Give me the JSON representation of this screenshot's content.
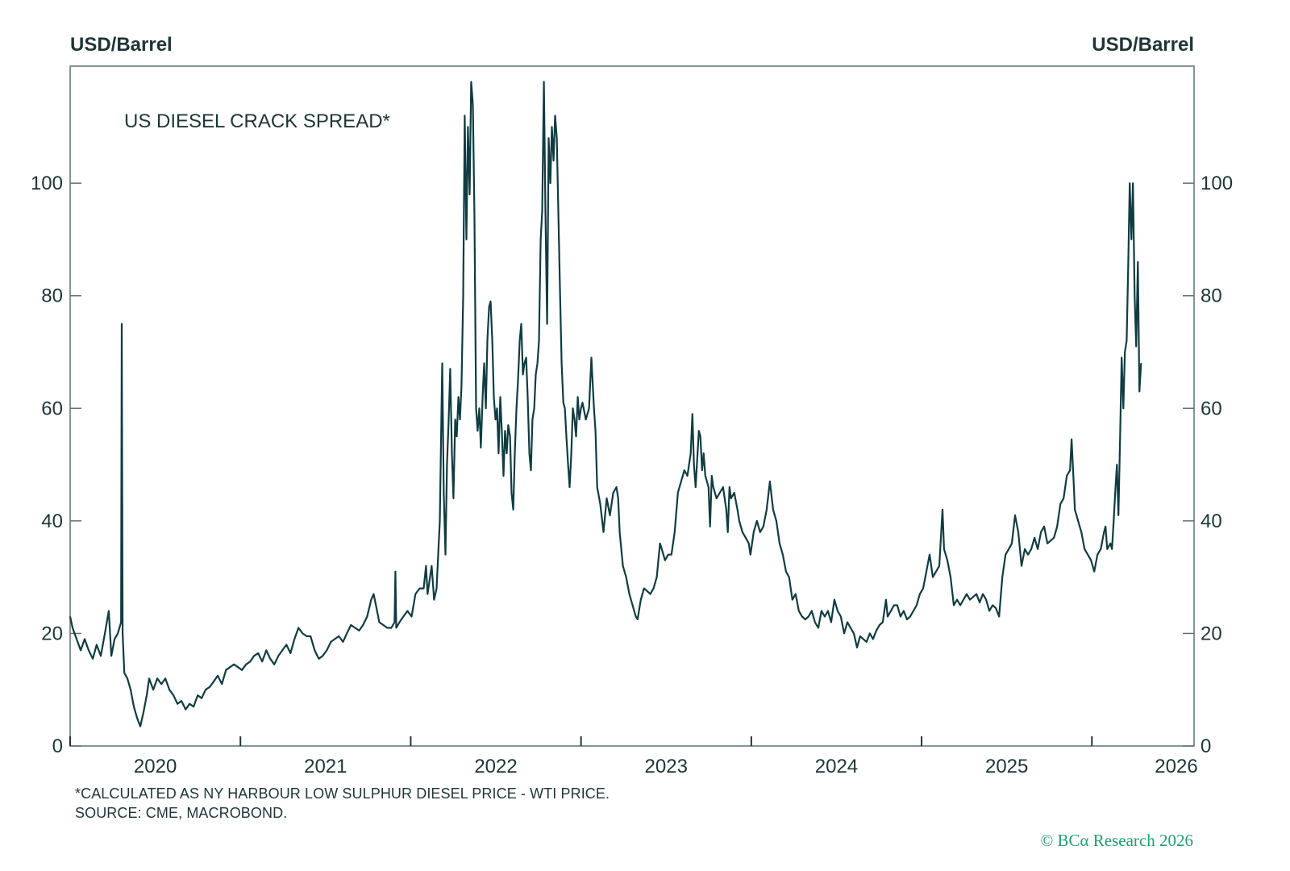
{
  "chart_data": {
    "type": "line",
    "title": "US DIESEL CRACK SPREAD*",
    "ylabel_left": "USD/Barrel",
    "ylabel_right": "USD/Barrel",
    "xlabel": "",
    "xlim": [
      2020,
      2026.6
    ],
    "ylim": [
      0,
      120.8
    ],
    "yticks": [
      "0",
      "20",
      "40",
      "60",
      "80",
      "100"
    ],
    "ytick_values": [
      0,
      20,
      40,
      60,
      80,
      100
    ],
    "xtick_labels": [
      "2020",
      "2021",
      "2022",
      "2023",
      "2024",
      "2025",
      "2026"
    ],
    "xtick_boundaries": [
      2020,
      2021,
      2022,
      2023,
      2024,
      2025,
      2026
    ],
    "grid": false,
    "line_color": "#103c41",
    "series": [
      {
        "x": [
          2020.0,
          2020.014,
          2020.038,
          2020.062,
          2020.085,
          2020.109,
          2020.133,
          2020.156,
          2020.18,
          2020.204,
          2020.227,
          2020.242,
          2020.261,
          2020.28,
          2020.299,
          2020.303,
          2020.308,
          2020.318,
          2020.336,
          2020.355,
          2020.374,
          2020.393,
          2020.412,
          2020.431,
          2020.45,
          2020.464,
          2020.488,
          2020.512,
          2020.536,
          2020.559,
          2020.583,
          2020.607,
          2020.63,
          2020.654,
          2020.678,
          2020.701,
          2020.725,
          2020.749,
          2020.772,
          2020.796,
          2020.82,
          2020.844,
          2020.867,
          2020.891,
          2020.915,
          2020.938,
          2020.962,
          2020.986,
          2021.009,
          2021.033,
          2021.057,
          2021.08,
          2021.104,
          2021.128,
          2021.152,
          2021.175,
          2021.199,
          2021.223,
          2021.246,
          2021.27,
          2021.294,
          2021.317,
          2021.341,
          2021.365,
          2021.389,
          2021.412,
          2021.436,
          2021.46,
          2021.483,
          2021.507,
          2021.531,
          2021.554,
          2021.578,
          2021.602,
          2021.625,
          2021.649,
          2021.673,
          2021.697,
          2021.72,
          2021.744,
          2021.768,
          2021.782,
          2021.796,
          2021.815,
          2021.839,
          2021.862,
          2021.886,
          2021.905,
          2021.91,
          2021.915,
          2021.934,
          2021.957,
          2021.981,
          2022.005,
          2022.028,
          2022.052,
          2022.076,
          2022.09,
          2022.099,
          2022.123,
          2022.137,
          2022.152,
          2022.171,
          2022.185,
          2022.194,
          2022.204,
          2022.213,
          2022.223,
          2022.232,
          2022.242,
          2022.251,
          2022.261,
          2022.27,
          2022.28,
          2022.289,
          2022.298,
          2022.308,
          2022.317,
          2022.327,
          2022.336,
          2022.346,
          2022.355,
          2022.365,
          2022.374,
          2022.384,
          2022.393,
          2022.403,
          2022.412,
          2022.422,
          2022.431,
          2022.441,
          2022.45,
          2022.46,
          2022.469,
          2022.479,
          2022.488,
          2022.498,
          2022.507,
          2022.516,
          2022.526,
          2022.535,
          2022.545,
          2022.554,
          2022.564,
          2022.573,
          2022.583,
          2022.592,
          2022.602,
          2022.611,
          2022.621,
          2022.63,
          2022.64,
          2022.649,
          2022.659,
          2022.668,
          2022.678,
          2022.687,
          2022.697,
          2022.706,
          2022.715,
          2022.725,
          2022.734,
          2022.744,
          2022.753,
          2022.763,
          2022.772,
          2022.782,
          2022.791,
          2022.801,
          2022.81,
          2022.82,
          2022.829,
          2022.839,
          2022.848,
          2022.858,
          2022.867,
          2022.877,
          2022.886,
          2022.896,
          2022.905,
          2022.914,
          2022.924,
          2022.933,
          2022.943,
          2022.952,
          2022.962,
          2022.971,
          2022.981,
          2022.99,
          2023.0,
          2023.009,
          2023.028,
          2023.047,
          2023.061,
          2023.076,
          2023.085,
          2023.095,
          2023.113,
          2023.132,
          2023.151,
          2023.17,
          2023.189,
          2023.208,
          2023.218,
          2023.227,
          2023.246,
          2023.265,
          2023.284,
          2023.303,
          2023.322,
          2023.332,
          2023.351,
          2023.37,
          2023.389,
          2023.407,
          2023.426,
          2023.445,
          2023.464,
          2023.474,
          2023.493,
          2023.512,
          2023.531,
          2023.55,
          2023.569,
          2023.588,
          2023.607,
          2023.625,
          2023.644,
          2023.654,
          2023.663,
          2023.673,
          2023.692,
          2023.701,
          2023.711,
          2023.72,
          2023.73,
          2023.749,
          2023.758,
          2023.768,
          2023.777,
          2023.796,
          2023.815,
          2023.834,
          2023.853,
          2023.862,
          2023.872,
          2023.881,
          2023.9,
          2023.919,
          2023.929,
          2023.948,
          2023.967,
          2023.985,
          2023.995,
          2024.014,
          2024.033,
          2024.052,
          2024.071,
          2024.09,
          2024.109,
          2024.128,
          2024.147,
          2024.166,
          2024.185,
          2024.204,
          2024.222,
          2024.241,
          2024.26,
          2024.279,
          2024.298,
          2024.317,
          2024.336,
          2024.355,
          2024.374,
          2024.393,
          2024.412,
          2024.431,
          2024.45,
          2024.469,
          2024.488,
          2024.507,
          2024.526,
          2024.545,
          2024.564,
          2024.583,
          2024.602,
          2024.621,
          2024.639,
          2024.658,
          2024.677,
          2024.696,
          2024.715,
          2024.734,
          2024.753,
          2024.772,
          2024.791,
          2024.801,
          2024.82,
          2024.838,
          2024.857,
          2024.876,
          2024.895,
          2024.914,
          2024.933,
          2024.952,
          2024.971,
          2024.99,
          2025.009,
          2025.028,
          2025.047,
          2025.066,
          2025.085,
          2025.104,
          2025.123,
          2025.132,
          2025.151,
          2025.17,
          2025.189,
          2025.208,
          2025.227,
          2025.246,
          2025.265,
          2025.284,
          2025.303,
          2025.322,
          2025.341,
          2025.36,
          2025.379,
          2025.398,
          2025.417,
          2025.436,
          2025.455,
          2025.474,
          2025.493,
          2025.512,
          2025.53,
          2025.549,
          2025.568,
          2025.587,
          2025.606,
          2025.625,
          2025.644,
          2025.663,
          2025.682,
          2025.701,
          2025.72,
          2025.739,
          2025.758,
          2025.777,
          2025.796,
          2025.815,
          2025.834,
          2025.853,
          2025.872,
          2025.881,
          2025.891,
          2025.9,
          2025.919,
          2025.938,
          2025.957,
          2025.976,
          2025.995,
          2026.014,
          2026.033,
          2026.052,
          2026.071,
          2026.08,
          2026.09,
          2026.109,
          2026.118,
          2026.128,
          2026.137,
          2026.147,
          2026.156,
          2026.166,
          2026.175,
          2026.185,
          2026.194,
          2026.204,
          2026.213,
          2026.222,
          2026.232,
          2026.241,
          2026.251,
          2026.26,
          2026.27,
          2026.279,
          2026.289
        ],
        "y": [
          23,
          21,
          19,
          17,
          19,
          17,
          15.5,
          18,
          16,
          20,
          24,
          16,
          19,
          20,
          22,
          75,
          20,
          13,
          12,
          10,
          7,
          5,
          3.5,
          6,
          9,
          12,
          10,
          12,
          11,
          12,
          10,
          9,
          7.5,
          8,
          6.5,
          7.5,
          7,
          9,
          8.5,
          10,
          10.5,
          11.5,
          12.5,
          11,
          13.5,
          14,
          14.5,
          14,
          13.5,
          14.5,
          15,
          16,
          16.5,
          15,
          17,
          15.5,
          14.5,
          16,
          17,
          18,
          16.5,
          19,
          21,
          20,
          19.5,
          19.5,
          17,
          15.5,
          16,
          17,
          18.5,
          19,
          19.5,
          18.5,
          20,
          21.5,
          21,
          20.5,
          21.5,
          23,
          26,
          27,
          25,
          22,
          21.5,
          21,
          21,
          22,
          31,
          21,
          22,
          23,
          24,
          23,
          27,
          28,
          28,
          32,
          27,
          32,
          26,
          28,
          40,
          68,
          45,
          34,
          50,
          58,
          67,
          52,
          44,
          58,
          55,
          62,
          58,
          64,
          80,
          112,
          90,
          110,
          98,
          118,
          114,
          95,
          60,
          56,
          60,
          53,
          62,
          68,
          60,
          72,
          78,
          79,
          72,
          62,
          58,
          60,
          52,
          62,
          56,
          48,
          56,
          52,
          57,
          55,
          45,
          42,
          52,
          60,
          65,
          72,
          75,
          66,
          68,
          69,
          62,
          52,
          49,
          58,
          60,
          66,
          68,
          72,
          90,
          95,
          118,
          95,
          75,
          108,
          100,
          110,
          104,
          112,
          108,
          95,
          80,
          68,
          61,
          60,
          55,
          50,
          46,
          52,
          60,
          58,
          55,
          62,
          58,
          60,
          61,
          58,
          60,
          69,
          60,
          56,
          46,
          43,
          38,
          44,
          41,
          45,
          46,
          44,
          38,
          32,
          30,
          27,
          25,
          23,
          22.5,
          26,
          28,
          27.5,
          27,
          28,
          30,
          36,
          35,
          33,
          34,
          34,
          38,
          45,
          47,
          49,
          48,
          52,
          59,
          50,
          46,
          56,
          55,
          49,
          52,
          48,
          46,
          39,
          48,
          46,
          44,
          45,
          46,
          42,
          38,
          46,
          44,
          45,
          42,
          40,
          38,
          37,
          36,
          34,
          38,
          40,
          38,
          39,
          42,
          47,
          42,
          40,
          36,
          34,
          31,
          30,
          26,
          27,
          24,
          23,
          22.5,
          23,
          24,
          22,
          21,
          24,
          23,
          24,
          22,
          26,
          24,
          23,
          20,
          22,
          21,
          20,
          17.5,
          19.5,
          19,
          18.5,
          20,
          19,
          20.5,
          21.5,
          22,
          26,
          23,
          24,
          25,
          25,
          23,
          24,
          22.5,
          23,
          24,
          25,
          27,
          28,
          31,
          34,
          30,
          31,
          32,
          42,
          35,
          33,
          30,
          25,
          26,
          25,
          26,
          27,
          26,
          26.5,
          27,
          25.5,
          27,
          26,
          24,
          25,
          24.5,
          23,
          30,
          34,
          35,
          36,
          41,
          38,
          32,
          35,
          34,
          35,
          37,
          35,
          38,
          39,
          36,
          36.5,
          37,
          39,
          43,
          44,
          48,
          49,
          54.5,
          48,
          42,
          40,
          38,
          35,
          34,
          33,
          31,
          34,
          35,
          38,
          39,
          35,
          36,
          35,
          40,
          45,
          50,
          41,
          55,
          69,
          60,
          70,
          72,
          85,
          100,
          90,
          100,
          80,
          71,
          86,
          63,
          68
        ]
      }
    ]
  },
  "footnotes": {
    "calc": "*CALCULATED AS NY HARBOUR LOW SULPHUR DIESEL PRICE - WTI PRICE.",
    "source": "SOURCE: CME, MACROBOND."
  },
  "watermark": "© BCα Research 2026"
}
